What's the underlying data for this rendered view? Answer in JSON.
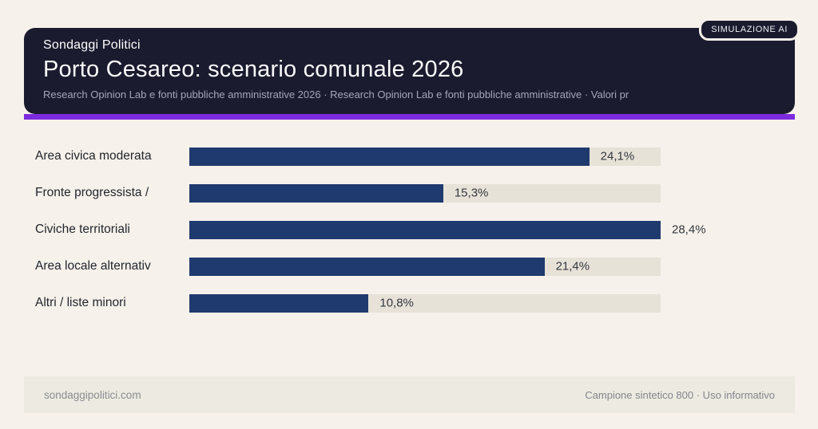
{
  "badge": {
    "label": "SIMULAZIONE AI"
  },
  "header": {
    "brand": "Sondaggi Politici",
    "title": "Porto Cesareo: scenario comunale 2026",
    "subtitle": "Research Opinion Lab e fonti pubbliche amministrative 2026 · Research Opinion Lab e fonti pubbliche amministrative · Valori pr"
  },
  "chart_data": {
    "type": "bar",
    "orientation": "horizontal",
    "title": "Porto Cesareo: scenario comunale 2026",
    "categories": [
      "Area civica moderata",
      "Fronte progressista /",
      "Civiche territoriali",
      "Area locale alternativ",
      "Altri / liste minori"
    ],
    "values": [
      24.1,
      15.3,
      28.4,
      21.4,
      10.8
    ],
    "value_labels": [
      "24,1%",
      "15,3%",
      "28,4%",
      "21,4%",
      "10,8%"
    ],
    "unit": "%",
    "xlim": [
      0,
      28.4
    ],
    "grid": false,
    "legend": false,
    "bar_color": "#1f3a6e",
    "track_color": "#e7e2d8"
  },
  "footer": {
    "left": "sondaggipolitici.com",
    "right": "Campione sintetico 800 · Uso informativo"
  },
  "colors": {
    "page_background": "#f6f1ea",
    "header_background": "#1a1b2e",
    "accent": "#7c2bdf",
    "bar": "#1f3a6e",
    "track": "#e7e2d8",
    "footer_background": "#edeae1"
  }
}
